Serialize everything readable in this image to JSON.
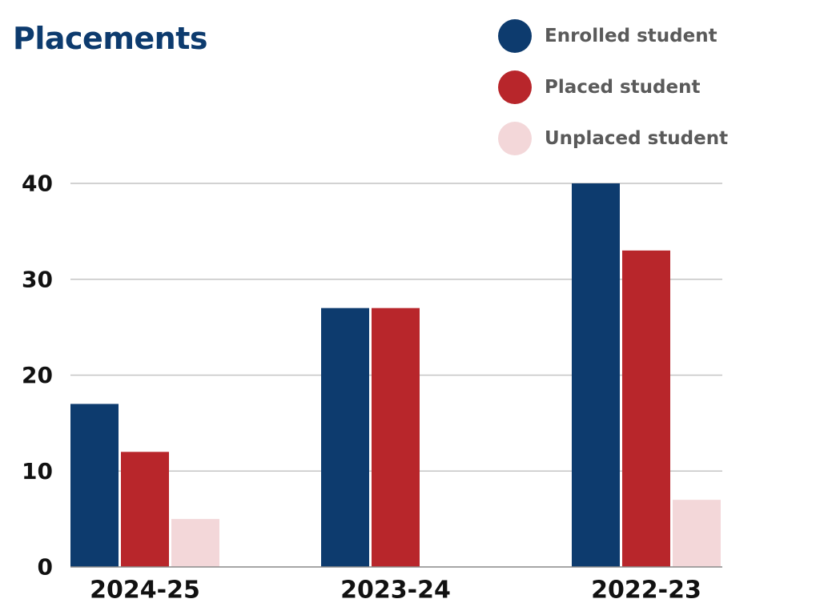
{
  "chart_data": {
    "type": "bar",
    "title": "Placements",
    "categories": [
      "2024-25",
      "2023-24",
      "2022-23"
    ],
    "series": [
      {
        "name": "Enrolled student",
        "color": "#0d3b6e",
        "values": [
          17,
          27,
          40
        ]
      },
      {
        "name": "Placed student",
        "color": "#b8262b",
        "values": [
          12,
          27,
          33
        ]
      },
      {
        "name": "Unplaced student",
        "color": "#f3d7d9",
        "values": [
          5,
          0,
          7
        ]
      }
    ],
    "yticks": [
      0,
      10,
      20,
      30,
      40
    ],
    "ylim": [
      0,
      40
    ],
    "grid": true,
    "legend_position": "top-right",
    "xlabel": "",
    "ylabel": ""
  }
}
